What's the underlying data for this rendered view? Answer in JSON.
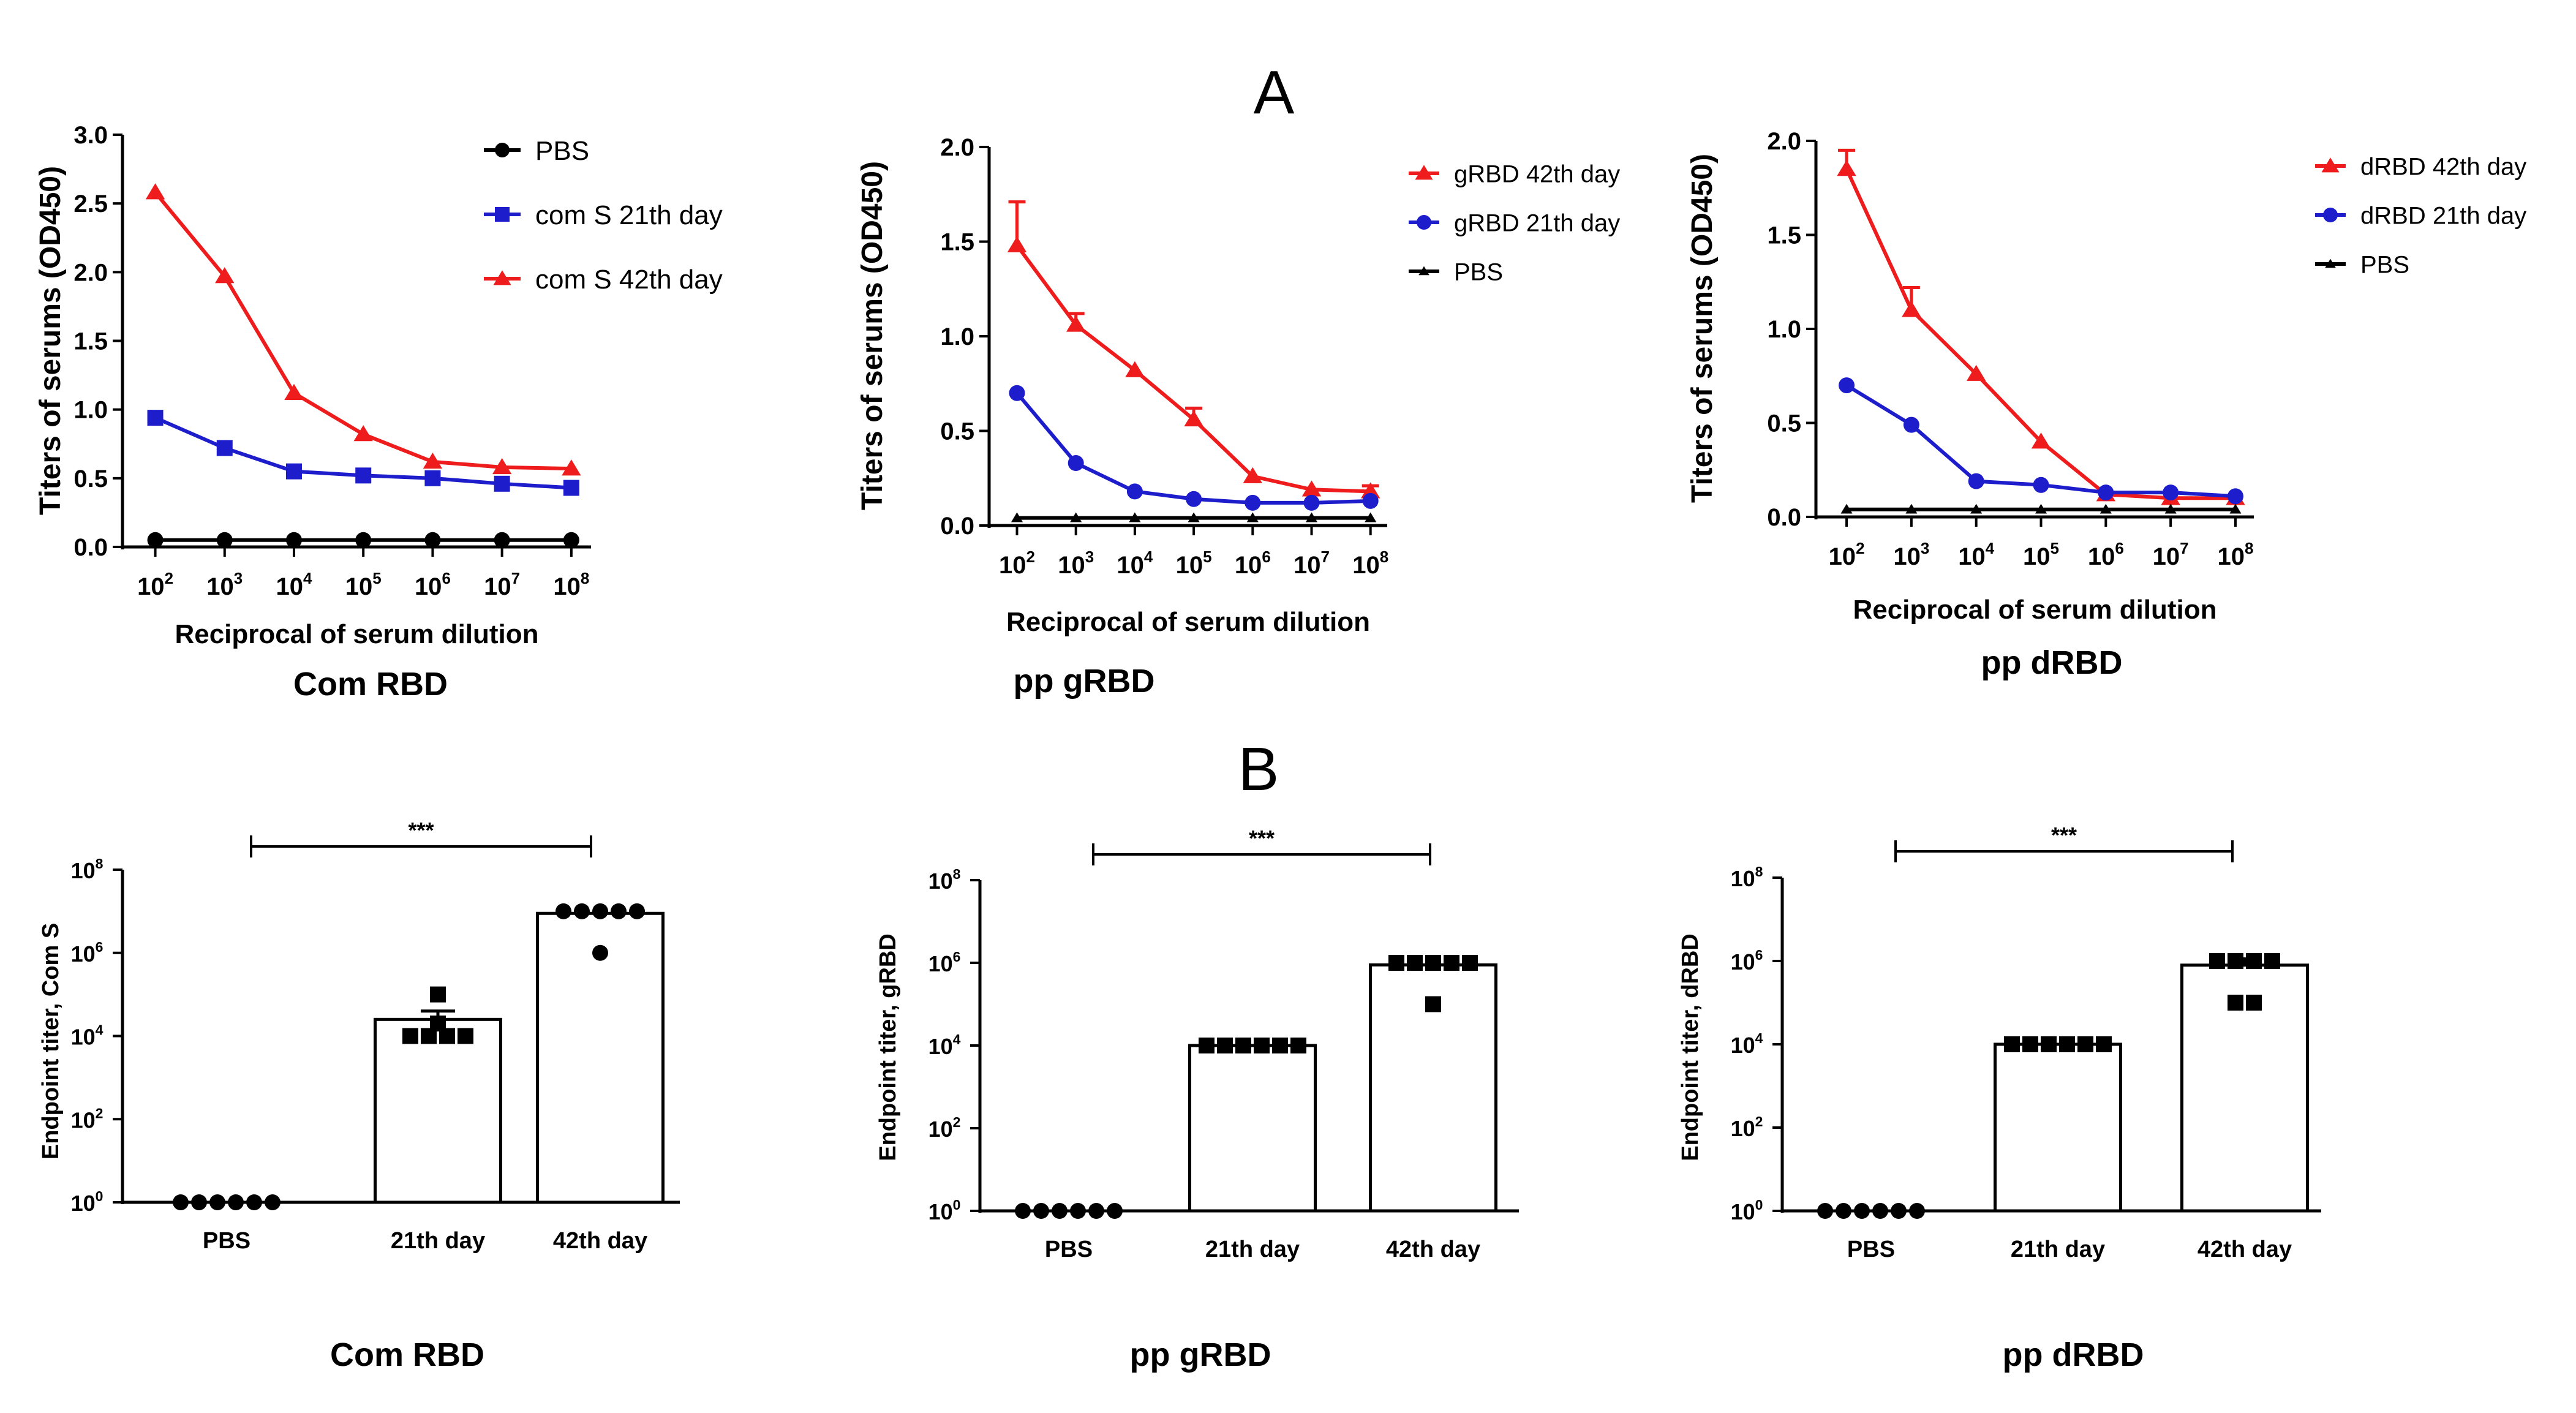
{
  "panel_labels": {
    "A": "A",
    "B": "B"
  },
  "colors": {
    "red": "#ee1c1c",
    "blue": "#1d1dcc",
    "black": "#000000"
  },
  "chart_data": [
    {
      "type": "line",
      "panel": "A",
      "title": "Com RBD",
      "xlabel": "Reciprocal of serum dilution",
      "ylabel": "Titers of serums (OD450)",
      "x_tick_exponents": [
        "2",
        "3",
        "4",
        "5",
        "6",
        "7",
        "8"
      ],
      "y_ticks": [
        "0.0",
        "0.5",
        "1.0",
        "1.5",
        "2.0",
        "2.5",
        "3.0"
      ],
      "ylim": [
        0,
        3.0
      ],
      "legend_position": "top-right",
      "series": [
        {
          "name": "PBS",
          "color": "#000000",
          "marker": "circle",
          "values": [
            0.05,
            0.05,
            0.05,
            0.05,
            0.05,
            0.05,
            0.05
          ],
          "errors": [
            0,
            0,
            0,
            0,
            0,
            0,
            0
          ]
        },
        {
          "name": "com S 21th day",
          "color": "#1d1dcc",
          "marker": "square",
          "values": [
            0.94,
            0.72,
            0.55,
            0.52,
            0.5,
            0.46,
            0.43
          ],
          "errors": [
            0,
            0,
            0,
            0,
            0,
            0,
            0
          ]
        },
        {
          "name": "com S 42th day",
          "color": "#ee1c1c",
          "marker": "triangle",
          "values": [
            2.58,
            1.97,
            1.12,
            0.82,
            0.62,
            0.58,
            0.57
          ],
          "errors": [
            0,
            0,
            0,
            0,
            0,
            0,
            0
          ]
        }
      ]
    },
    {
      "type": "line",
      "panel": "A",
      "title": "pp gRBD",
      "xlabel": "Reciprocal of serum dilution",
      "ylabel": "Titers of serums (OD450)",
      "x_tick_exponents": [
        "2",
        "3",
        "4",
        "5",
        "6",
        "7",
        "8"
      ],
      "y_ticks": [
        "0.0",
        "0.5",
        "1.0",
        "1.5",
        "2.0"
      ],
      "ylim": [
        0,
        2.0
      ],
      "legend_position": "top-right",
      "series": [
        {
          "name": "gRBD 42th day",
          "color": "#ee1c1c",
          "marker": "triangle",
          "values": [
            1.48,
            1.06,
            0.82,
            0.56,
            0.26,
            0.19,
            0.18
          ],
          "errors": [
            0.23,
            0.06,
            0,
            0.06,
            0,
            0,
            0.03
          ]
        },
        {
          "name": "gRBD 21th day",
          "color": "#1d1dcc",
          "marker": "circle",
          "values": [
            0.7,
            0.33,
            0.18,
            0.14,
            0.12,
            0.12,
            0.13
          ],
          "errors": [
            0,
            0,
            0,
            0,
            0,
            0,
            0
          ]
        },
        {
          "name": "PBS",
          "color": "#000000",
          "marker": "triangle-small",
          "values": [
            0.04,
            0.04,
            0.04,
            0.04,
            0.04,
            0.04,
            0.04
          ],
          "errors": [
            0,
            0,
            0,
            0,
            0,
            0,
            0
          ]
        }
      ]
    },
    {
      "type": "line",
      "panel": "A",
      "title": "pp dRBD",
      "xlabel": "Reciprocal of serum dilution",
      "ylabel": "Titers of serums (OD450)",
      "x_tick_exponents": [
        "2",
        "3",
        "4",
        "5",
        "6",
        "7",
        "8"
      ],
      "y_ticks": [
        "0.0",
        "0.5",
        "1.0",
        "1.5",
        "2.0"
      ],
      "ylim": [
        0,
        2.0
      ],
      "legend_position": "top-right",
      "series": [
        {
          "name": "dRBD 42th day",
          "color": "#ee1c1c",
          "marker": "triangle",
          "values": [
            1.85,
            1.1,
            0.76,
            0.4,
            0.12,
            0.1,
            0.1
          ],
          "errors": [
            0.1,
            0.12,
            0,
            0,
            0,
            0,
            0
          ]
        },
        {
          "name": "dRBD 21th day",
          "color": "#1d1dcc",
          "marker": "circle",
          "values": [
            0.7,
            0.49,
            0.19,
            0.17,
            0.13,
            0.13,
            0.11
          ],
          "errors": [
            0,
            0,
            0,
            0,
            0,
            0,
            0
          ]
        },
        {
          "name": "PBS",
          "color": "#000000",
          "marker": "triangle-small",
          "values": [
            0.04,
            0.04,
            0.04,
            0.04,
            0.04,
            0.04,
            0.04
          ],
          "errors": [
            0,
            0,
            0,
            0,
            0,
            0,
            0
          ]
        }
      ]
    },
    {
      "type": "bar",
      "panel": "B",
      "title": "Com RBD",
      "xlabel": "",
      "ylabel": "Endpoint titer, Com S",
      "categories": [
        "PBS",
        "21th day",
        "42th day"
      ],
      "y_tick_exponents": [
        "0",
        "2",
        "4",
        "6",
        "8"
      ],
      "ylim_log10": [
        0,
        8
      ],
      "bar_values_log10": [
        0,
        4.4,
        6.95
      ],
      "error_log10": [
        0,
        0.2,
        0
      ],
      "points_log10": [
        [
          0,
          0,
          0,
          0,
          0,
          0
        ],
        [
          4,
          4,
          4,
          4,
          4.3,
          5
        ],
        [
          7,
          7,
          7,
          7,
          7,
          6
        ]
      ],
      "point_markers": [
        "circle",
        "square",
        "circle"
      ],
      "significance": {
        "from": 0,
        "to": 2,
        "label": "***"
      }
    },
    {
      "type": "bar",
      "panel": "B",
      "title": "pp gRBD",
      "xlabel": "",
      "ylabel": "Endpoint titer, gRBD",
      "categories": [
        "PBS",
        "21th day",
        "42th day"
      ],
      "y_tick_exponents": [
        "0",
        "2",
        "4",
        "6",
        "8"
      ],
      "ylim_log10": [
        0,
        8
      ],
      "bar_values_log10": [
        0,
        4,
        5.95
      ],
      "error_log10": [
        0,
        0,
        0
      ],
      "points_log10": [
        [
          0,
          0,
          0,
          0,
          0,
          0
        ],
        [
          4,
          4,
          4,
          4,
          4,
          4
        ],
        [
          6,
          6,
          6,
          6,
          6,
          5
        ]
      ],
      "point_markers": [
        "circle",
        "square",
        "square"
      ],
      "significance": {
        "from": 0,
        "to": 2,
        "label": "***"
      }
    },
    {
      "type": "bar",
      "panel": "B",
      "title": "pp dRBD",
      "xlabel": "",
      "ylabel": "Endpoint titer, dRBD",
      "categories": [
        "PBS",
        "21th day",
        "42th day"
      ],
      "y_tick_exponents": [
        "0",
        "2",
        "4",
        "6",
        "8"
      ],
      "ylim_log10": [
        0,
        8
      ],
      "bar_values_log10": [
        0,
        4,
        5.9
      ],
      "error_log10": [
        0,
        0,
        0.15
      ],
      "points_log10": [
        [
          0,
          0,
          0,
          0,
          0,
          0
        ],
        [
          4,
          4,
          4,
          4,
          4,
          4
        ],
        [
          6,
          6,
          6,
          6,
          5,
          5
        ]
      ],
      "point_markers": [
        "circle",
        "square",
        "square"
      ],
      "significance": {
        "from": 0,
        "to": 2,
        "label": "***"
      }
    }
  ]
}
